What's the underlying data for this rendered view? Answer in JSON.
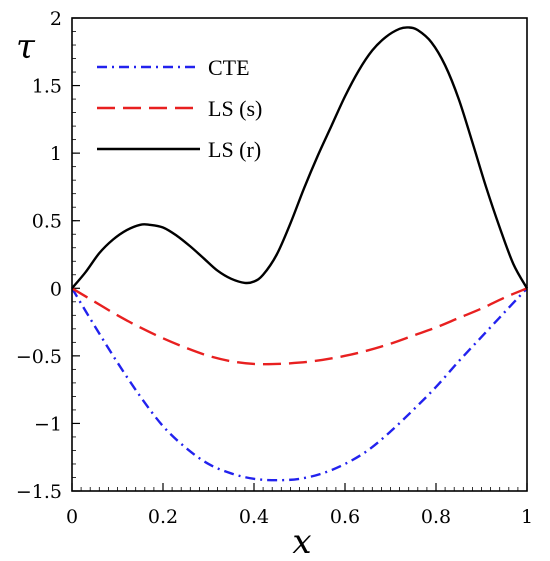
{
  "chart_data": {
    "type": "line",
    "title": "",
    "xlabel": "x",
    "ylabel": "τ",
    "xlim": [
      0,
      1
    ],
    "ylim": [
      -1.5,
      2
    ],
    "xticks": [
      0,
      0.2,
      0.4,
      0.6,
      0.8,
      1
    ],
    "xtick_labels": [
      "0",
      "0.2",
      "0.4",
      "0.6",
      "0.8",
      "1"
    ],
    "yticks": [
      -1.5,
      -1,
      -0.5,
      0,
      0.5,
      1,
      1.5,
      2
    ],
    "ytick_labels": [
      "−1.5",
      "−1",
      "−0.5",
      "0",
      "0.5",
      "1",
      "1.5",
      "2"
    ],
    "grid": false,
    "legend_position": "top-left",
    "series": [
      {
        "name": "CTE",
        "color": "#2222ee",
        "dash": "dashdot",
        "x": [
          0,
          0.05,
          0.1,
          0.15,
          0.2,
          0.25,
          0.3,
          0.35,
          0.4,
          0.45,
          0.5,
          0.55,
          0.6,
          0.65,
          0.7,
          0.75,
          0.8,
          0.85,
          0.9,
          0.95,
          1
        ],
        "y": [
          0,
          -0.28,
          -0.55,
          -0.8,
          -1.02,
          -1.18,
          -1.3,
          -1.37,
          -1.41,
          -1.42,
          -1.41,
          -1.37,
          -1.3,
          -1.2,
          -1.06,
          -0.9,
          -0.73,
          -0.54,
          -0.36,
          -0.18,
          0
        ]
      },
      {
        "name": "LS (s)",
        "color": "#e82020",
        "dash": "dash",
        "x": [
          0,
          0.05,
          0.1,
          0.15,
          0.2,
          0.25,
          0.3,
          0.35,
          0.4,
          0.45,
          0.5,
          0.55,
          0.6,
          0.65,
          0.7,
          0.75,
          0.8,
          0.85,
          0.9,
          0.95,
          1
        ],
        "y": [
          0,
          -0.1,
          -0.2,
          -0.29,
          -0.37,
          -0.44,
          -0.5,
          -0.54,
          -0.56,
          -0.56,
          -0.55,
          -0.53,
          -0.5,
          -0.46,
          -0.41,
          -0.35,
          -0.29,
          -0.22,
          -0.15,
          -0.07,
          0
        ]
      },
      {
        "name": "LS (r)",
        "color": "#000000",
        "dash": "solid",
        "x": [
          0,
          0.03,
          0.06,
          0.09,
          0.12,
          0.15,
          0.17,
          0.2,
          0.23,
          0.26,
          0.29,
          0.32,
          0.35,
          0.38,
          0.4,
          0.42,
          0.45,
          0.48,
          0.51,
          0.54,
          0.57,
          0.6,
          0.63,
          0.66,
          0.69,
          0.72,
          0.74,
          0.76,
          0.79,
          0.82,
          0.85,
          0.88,
          0.91,
          0.94,
          0.97,
          1
        ],
        "y": [
          0,
          0.12,
          0.26,
          0.36,
          0.43,
          0.47,
          0.47,
          0.45,
          0.39,
          0.31,
          0.22,
          0.13,
          0.07,
          0.04,
          0.05,
          0.1,
          0.25,
          0.48,
          0.74,
          0.98,
          1.2,
          1.42,
          1.61,
          1.76,
          1.86,
          1.92,
          1.93,
          1.91,
          1.82,
          1.65,
          1.4,
          1.08,
          0.75,
          0.45,
          0.18,
          0
        ]
      }
    ]
  }
}
